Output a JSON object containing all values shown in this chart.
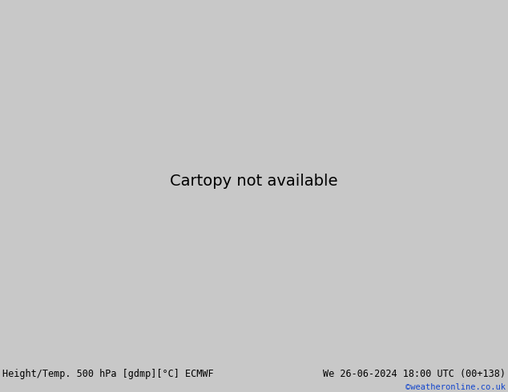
{
  "title_left": "Height/Temp. 500 hPa [gdmp][°C] ECMWF",
  "title_right": "We 26-06-2024 18:00 UTC (00+138)",
  "credit": "©weatheronline.co.uk",
  "bg_color": "#c8c8c8",
  "land_color_aus": "#b8dfa0",
  "land_color_other": "#c0c0c0",
  "sea_color": "#c8c8c8",
  "coast_color": "#888888",
  "bottom_bar_color": "#e0e0e0",
  "title_fontsize": 8.5,
  "credit_color": "#1144cc",
  "credit_fontsize": 7.5,
  "geop_color": "#000000",
  "temp_colors": {
    "pos5": "#ff0000",
    "neg5": "#ff0000",
    "neg10": "#ff8800",
    "neg15": "#ff8800",
    "neg20": "#88bb00",
    "neg23": "#00cc88",
    "neg25": "#00ccaa",
    "neg30": "#00bbdd",
    "neg35": "#00aaff"
  },
  "contour_label_fontsize": 6.5,
  "map_lon_min": 100,
  "map_lon_max": 190,
  "map_lat_min": -58,
  "map_lat_max": 8
}
